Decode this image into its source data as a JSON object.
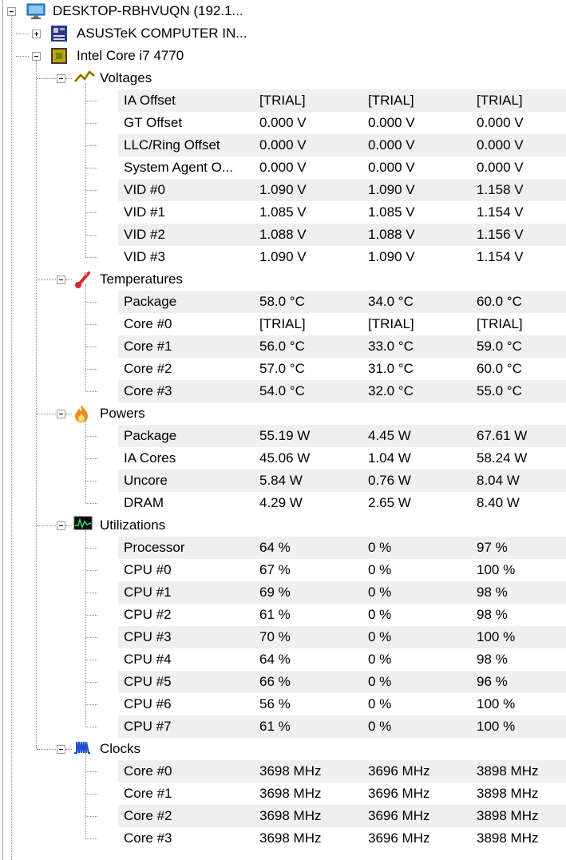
{
  "tree": {
    "root": {
      "label": "DESKTOP-RBHVUQN (192.1...",
      "icon": "monitor-icon"
    },
    "board": {
      "label": "ASUSTeK COMPUTER IN...",
      "icon": "motherboard-icon"
    },
    "cpu": {
      "label": "Intel Core i7 4770",
      "icon": "cpu-chip-icon"
    },
    "groups": [
      {
        "id": "voltages",
        "label": "Voltages",
        "icon": "voltage-icon",
        "rows": [
          [
            "IA Offset",
            "[TRIAL]",
            "[TRIAL]",
            "[TRIAL]"
          ],
          [
            "GT Offset",
            "0.000 V",
            "0.000 V",
            "0.000 V"
          ],
          [
            "LLC/Ring Offset",
            "0.000 V",
            "0.000 V",
            "0.000 V"
          ],
          [
            "System Agent O...",
            "0.000 V",
            "0.000 V",
            "0.000 V"
          ],
          [
            "VID #0",
            "1.090 V",
            "1.090 V",
            "1.158 V"
          ],
          [
            "VID #1",
            "1.085 V",
            "1.085 V",
            "1.154 V"
          ],
          [
            "VID #2",
            "1.088 V",
            "1.088 V",
            "1.156 V"
          ],
          [
            "VID #3",
            "1.090 V",
            "1.090 V",
            "1.154 V"
          ]
        ]
      },
      {
        "id": "temperatures",
        "label": "Temperatures",
        "icon": "thermometer-icon",
        "rows": [
          [
            "Package",
            "58.0 °C",
            "34.0 °C",
            "60.0 °C"
          ],
          [
            "Core #0",
            "[TRIAL]",
            "[TRIAL]",
            "[TRIAL]"
          ],
          [
            "Core #1",
            "56.0 °C",
            "33.0 °C",
            "59.0 °C"
          ],
          [
            "Core #2",
            "57.0 °C",
            "31.0 °C",
            "60.0 °C"
          ],
          [
            "Core #3",
            "54.0 °C",
            "32.0 °C",
            "55.0 °C"
          ]
        ]
      },
      {
        "id": "powers",
        "label": "Powers",
        "icon": "flame-icon",
        "rows": [
          [
            "Package",
            "55.19 W",
            "4.45 W",
            "67.61 W"
          ],
          [
            "IA Cores",
            "45.06 W",
            "1.04 W",
            "58.24 W"
          ],
          [
            "Uncore",
            "5.84 W",
            "0.76 W",
            "8.04 W"
          ],
          [
            "DRAM",
            "4.29 W",
            "2.65 W",
            "8.40 W"
          ]
        ]
      },
      {
        "id": "utilizations",
        "label": "Utilizations",
        "icon": "activity-monitor-icon",
        "rows": [
          [
            "Processor",
            "64 %",
            "0 %",
            "97 %"
          ],
          [
            "CPU #0",
            "67 %",
            "0 %",
            "100 %"
          ],
          [
            "CPU #1",
            "69 %",
            "0 %",
            "98 %"
          ],
          [
            "CPU #2",
            "61 %",
            "0 %",
            "98 %"
          ],
          [
            "CPU #3",
            "70 %",
            "0 %",
            "100 %"
          ],
          [
            "CPU #4",
            "64 %",
            "0 %",
            "98 %"
          ],
          [
            "CPU #5",
            "66 %",
            "0 %",
            "96 %"
          ],
          [
            "CPU #6",
            "56 %",
            "0 %",
            "100 %"
          ],
          [
            "CPU #7",
            "61 %",
            "0 %",
            "100 %"
          ]
        ]
      },
      {
        "id": "clocks",
        "label": "Clocks",
        "icon": "clock-signal-icon",
        "rows": [
          [
            "Core #0",
            "3698 MHz",
            "3696 MHz",
            "3898 MHz"
          ],
          [
            "Core #1",
            "3698 MHz",
            "3696 MHz",
            "3898 MHz"
          ],
          [
            "Core #2",
            "3698 MHz",
            "3696 MHz",
            "3898 MHz"
          ],
          [
            "Core #3",
            "3698 MHz",
            "3696 MHz",
            "3898 MHz"
          ]
        ]
      }
    ]
  },
  "colors": {
    "row_shade": "#efefef",
    "monitor": "#2e8fd8",
    "chip": "#c8a000",
    "thermometer": "#d8262b",
    "flame": "#f08a1c"
  }
}
